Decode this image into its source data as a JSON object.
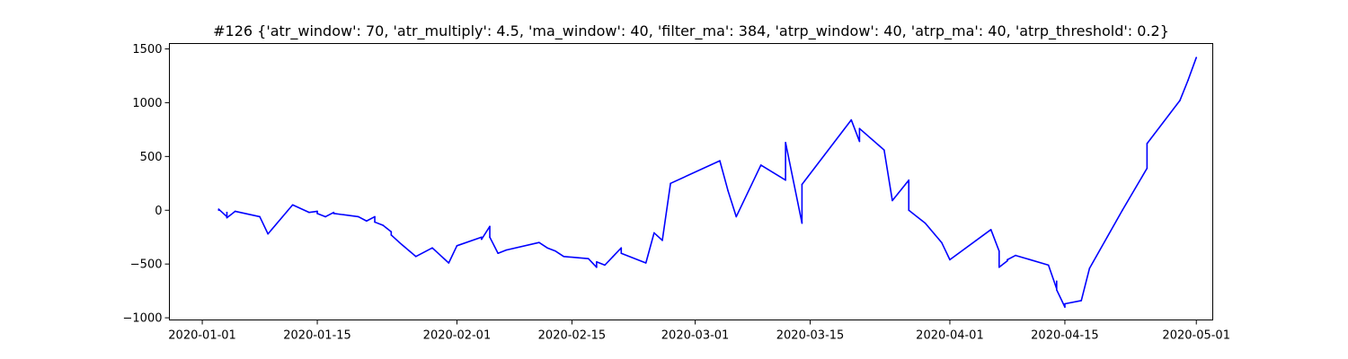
{
  "chart_data": {
    "type": "line",
    "title": "#126 {'atr_window': 70, 'atr_multiply': 4.5, 'ma_window': 40, 'filter_ma': 384, 'atrp_window': 40, 'atrp_ma': 40, 'atrp_threshold': 0.2}",
    "xlabel": "",
    "ylabel": "",
    "xlim": [
      "2019-12-28",
      "2020-05-03"
    ],
    "ylim": [
      -1020,
      1550
    ],
    "x_ticks": [
      "2020-01-01",
      "2020-01-15",
      "2020-02-01",
      "2020-02-15",
      "2020-03-01",
      "2020-03-15",
      "2020-04-01",
      "2020-04-15",
      "2020-05-01"
    ],
    "y_ticks": [
      -1000,
      -500,
      0,
      500,
      1000,
      1500
    ],
    "grid": false,
    "line_color": "#0000ff",
    "series": [
      {
        "x": [
          "2020-01-03",
          "2020-01-03",
          "2020-01-04",
          "2020-01-04",
          "2020-01-04",
          "2020-01-05",
          "2020-01-08",
          "2020-01-09",
          "2020-01-12",
          "2020-01-14",
          "2020-01-15",
          "2020-01-15",
          "2020-01-16",
          "2020-01-17",
          "2020-01-17",
          "2020-01-20",
          "2020-01-21",
          "2020-01-22",
          "2020-01-22",
          "2020-01-23",
          "2020-01-24",
          "2020-01-24",
          "2020-01-25",
          "2020-01-27",
          "2020-01-29",
          "2020-01-31",
          "2020-02-01",
          "2020-02-04",
          "2020-02-04",
          "2020-02-05",
          "2020-02-05",
          "2020-02-06",
          "2020-02-07",
          "2020-02-11",
          "2020-02-12",
          "2020-02-13",
          "2020-02-14",
          "2020-02-17",
          "2020-02-18",
          "2020-02-18",
          "2020-02-19",
          "2020-02-20",
          "2020-02-21",
          "2020-02-21",
          "2020-02-24",
          "2020-02-25",
          "2020-02-26",
          "2020-02-27",
          "2020-03-04",
          "2020-03-05",
          "2020-03-06",
          "2020-03-09",
          "2020-03-12",
          "2020-03-12",
          "2020-03-14",
          "2020-03-14",
          "2020-03-20",
          "2020-03-21",
          "2020-03-21",
          "2020-03-24",
          "2020-03-25",
          "2020-03-27",
          "2020-03-27",
          "2020-03-29",
          "2020-03-31",
          "2020-04-01",
          "2020-04-06",
          "2020-04-07",
          "2020-04-07",
          "2020-04-08",
          "2020-04-08",
          "2020-04-09",
          "2020-04-13",
          "2020-04-14",
          "2020-04-14",
          "2020-04-14",
          "2020-04-15",
          "2020-04-15",
          "2020-04-17",
          "2020-04-18",
          "2020-04-22",
          "2020-04-25",
          "2020-04-25",
          "2020-04-29",
          "2020-04-30",
          "2020-05-01"
        ],
        "values": [
          0,
          10,
          -60,
          -20,
          -70,
          -10,
          -60,
          -220,
          50,
          -20,
          -10,
          -30,
          -60,
          -20,
          -30,
          -60,
          -100,
          -60,
          -110,
          -140,
          -200,
          -230,
          -300,
          -430,
          -350,
          -490,
          -330,
          -250,
          -270,
          -150,
          -250,
          -400,
          -370,
          -300,
          -350,
          -380,
          -430,
          -450,
          -530,
          -480,
          -510,
          -430,
          -350,
          -400,
          -490,
          -210,
          -280,
          250,
          460,
          180,
          -60,
          420,
          280,
          630,
          -120,
          240,
          840,
          640,
          760,
          560,
          90,
          280,
          0,
          -120,
          -300,
          -460,
          -180,
          -380,
          -530,
          -470,
          -460,
          -420,
          -510,
          -730,
          -660,
          -740,
          -900,
          -870,
          -840,
          -540,
          0,
          390,
          620,
          1020,
          1210,
          1420
        ]
      }
    ]
  }
}
